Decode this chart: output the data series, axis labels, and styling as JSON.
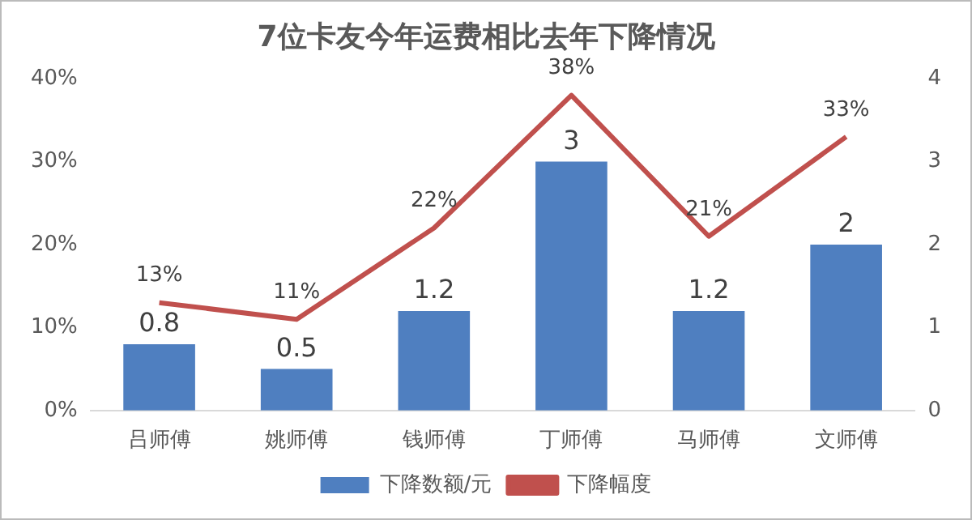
{
  "chart_data": {
    "type": "bar",
    "title": "7位卡友今年运费相比去年下降情况",
    "categories": [
      "吕师傅",
      "姚师傅",
      "钱师傅",
      "丁师傅",
      "马师傅",
      "文师傅"
    ],
    "series": [
      {
        "name": "下降数额/元",
        "axis": "y2",
        "color": "#4f7fc0",
        "values": [
          0.8,
          0.5,
          1.2,
          3,
          1.2,
          2
        ],
        "value_labels": [
          "0.8",
          "0.5",
          "1.2",
          "3",
          "1.2",
          "2"
        ]
      },
      {
        "name": "下降幅度",
        "type": "line",
        "axis": "y",
        "color": "#c0504d",
        "values": [
          13,
          11,
          22,
          38,
          21,
          33
        ],
        "value_labels": [
          "13%",
          "11%",
          "22%",
          "38%",
          "21%",
          "33%"
        ]
      }
    ],
    "ylim": [
      0,
      40
    ],
    "yticks": [
      {
        "value": 0,
        "label": "0%"
      },
      {
        "value": 10,
        "label": "10%"
      },
      {
        "value": 20,
        "label": "20%"
      },
      {
        "value": 30,
        "label": "30%"
      },
      {
        "value": 40,
        "label": "40%"
      }
    ],
    "y2lim": [
      0,
      4
    ],
    "y2ticks": [
      0,
      1,
      2,
      3,
      4
    ],
    "legend": "bottom",
    "grid": false,
    "marker": "none",
    "line_style": "solid"
  }
}
